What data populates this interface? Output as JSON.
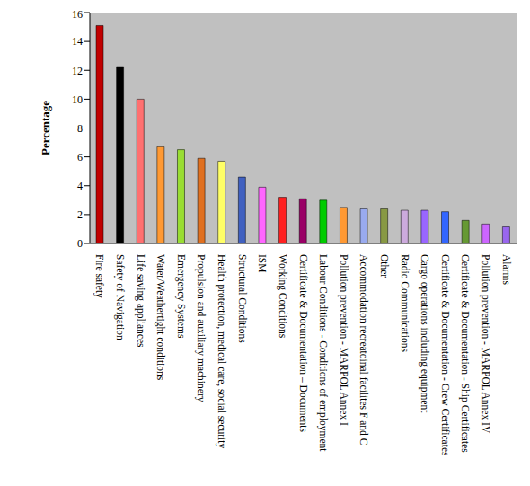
{
  "chart_data": {
    "type": "bar",
    "y_label": "Percentage",
    "categories": [
      "Fire safety",
      "Safety of Navigation",
      "Life saving appliances",
      "Water/Weathertight conditions",
      "Emergency Systems",
      "Propulsion and auxiliary machinery",
      "Health protection, medical care, social security",
      "Structural Conditions",
      "ISM",
      "Working Conditions",
      "Certificate & Documentation – Documents",
      "Labour Conditions - Conditions of employment",
      "Pollution prevention - MARPOL Annex I",
      "Accommodation recreatoinal facilites F and C",
      "Other",
      "Radio Communications",
      "Cargo operations including equipment",
      "Certificate & Documentation - Crew Certificates",
      "Certificate & Documentation - Ship Certificates",
      "Pollution prevention - MARPOL Annex IV",
      "Alarms"
    ],
    "values": [
      15.1,
      12.2,
      10.0,
      6.7,
      6.5,
      5.9,
      5.7,
      4.6,
      3.9,
      3.2,
      3.1,
      3.0,
      2.5,
      2.4,
      2.4,
      2.3,
      2.3,
      2.2,
      1.6,
      1.35,
      1.15
    ],
    "colors": [
      "#c00000",
      "#000000",
      "#ff7070",
      "#ff9933",
      "#99dd33",
      "#e07020",
      "#ffff66",
      "#4060c0",
      "#ff66ff",
      "#ff2020",
      "#990066",
      "#00cc00",
      "#ff9933",
      "#99aaee",
      "#889944",
      "#ccaadd",
      "#9966ff",
      "#3366ff",
      "#669933",
      "#cc66ff",
      "#9966ee"
    ],
    "ylim": [
      0,
      16
    ],
    "yticks": [
      0,
      2,
      4,
      6,
      8,
      10,
      12,
      14,
      16
    ],
    "grid": false
  }
}
